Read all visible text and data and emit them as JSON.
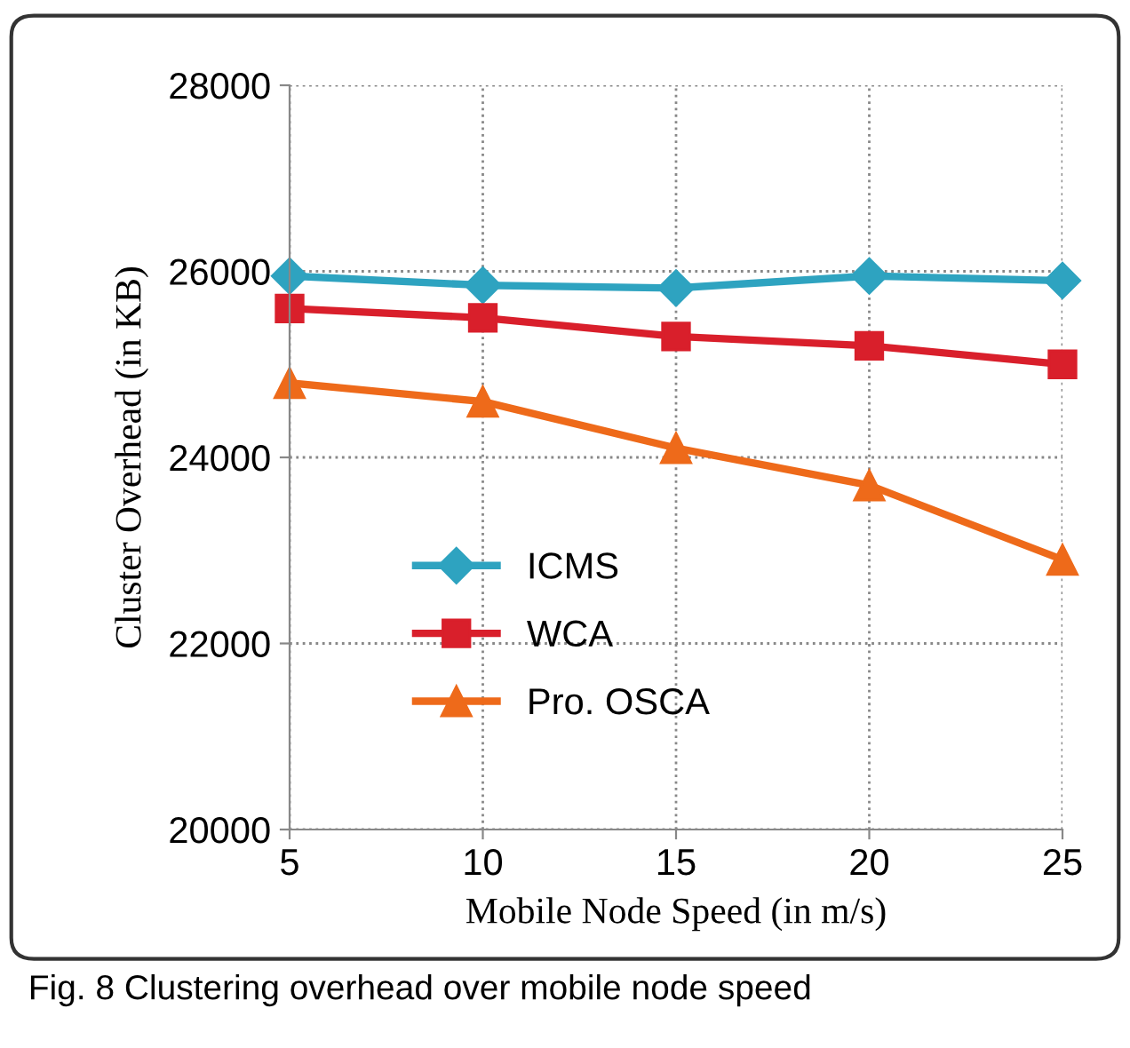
{
  "chart_data": {
    "type": "line",
    "xlabel": "Mobile Node Speed (in m/s)",
    "ylabel": "Cluster Overhead (in KB)",
    "x": [
      5,
      10,
      15,
      20,
      25
    ],
    "series": [
      {
        "name": "ICMS",
        "color": "#2ea3c0",
        "marker": "diamond",
        "values": [
          25950,
          25850,
          25820,
          25950,
          25900
        ]
      },
      {
        "name": "WCA",
        "color": "#d91f2b",
        "marker": "square",
        "values": [
          25600,
          25500,
          25300,
          25200,
          25000
        ]
      },
      {
        "name": "Pro. OSCA",
        "color": "#ee6a1a",
        "marker": "triangle",
        "values": [
          24800,
          24600,
          24100,
          23700,
          22900
        ]
      }
    ],
    "xlim": [
      5,
      25
    ],
    "xticks": [
      5,
      10,
      15,
      20,
      25
    ],
    "ylim": [
      20000,
      28000
    ],
    "yticks": [
      20000,
      22000,
      24000,
      26000,
      28000
    ],
    "grid": true,
    "legend": "bottom left",
    "line_style": "solid",
    "annotations": [
      "Fig. 8 Clustering overhead over mobile node speed"
    ]
  }
}
